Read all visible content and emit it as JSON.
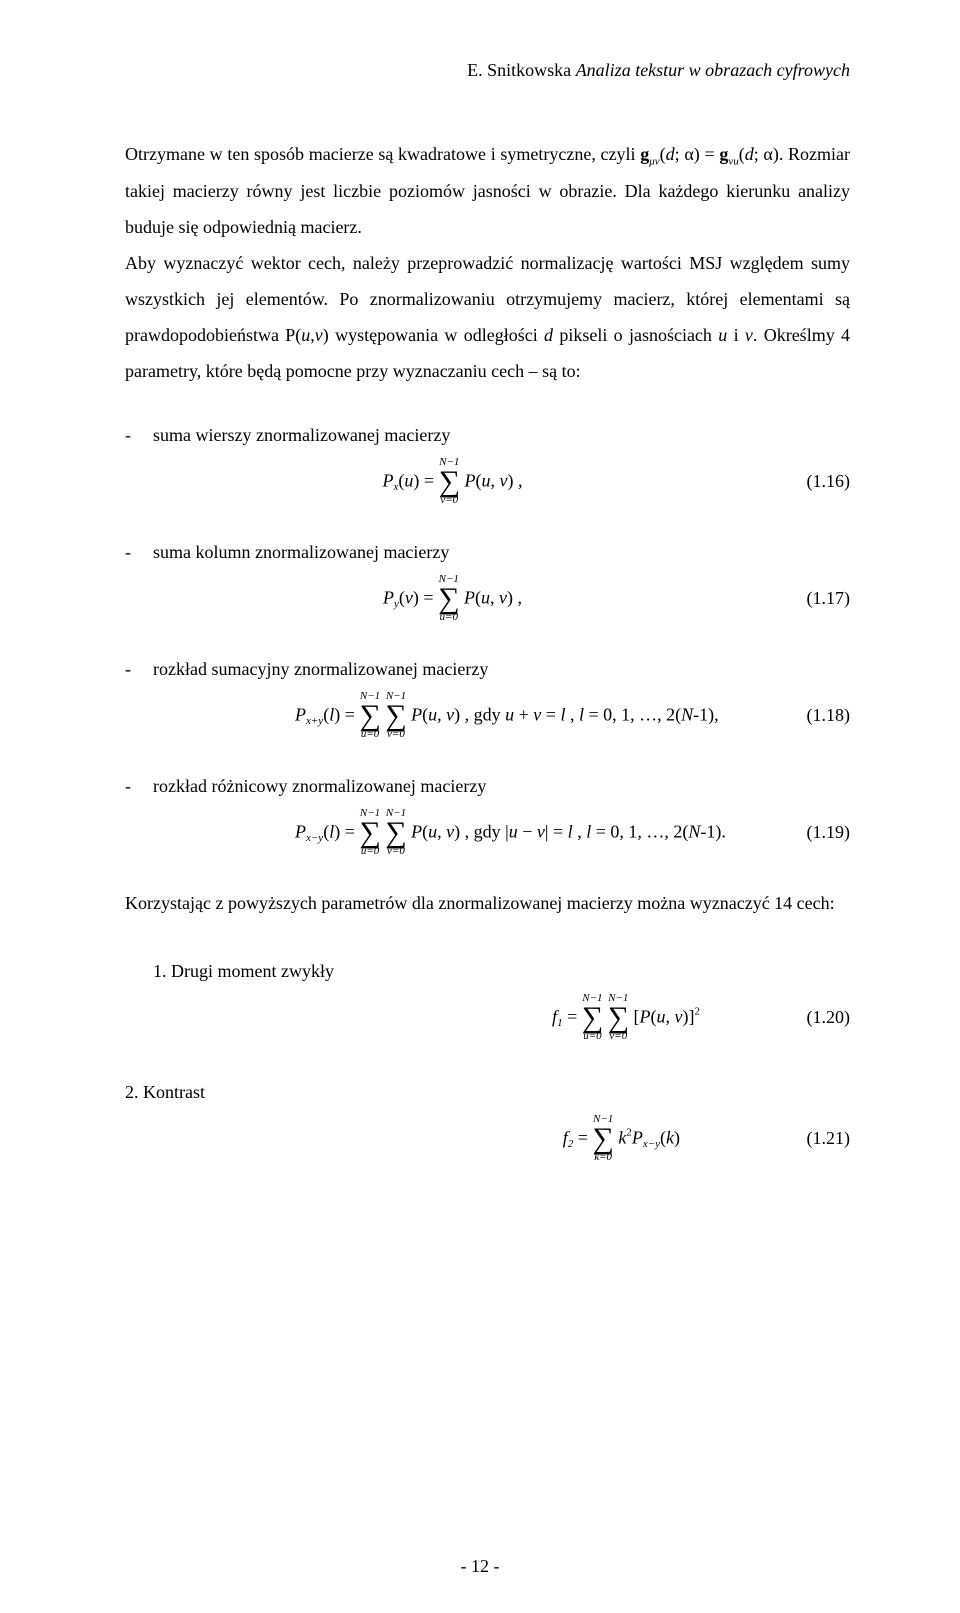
{
  "header": {
    "author": "E. Snitkowska ",
    "title": "Analiza tekstur w obrazach cyfrowych"
  },
  "para1": "Otrzymane w ten sposób macierze są kwadratowe i symetryczne, czyli gμν(d; α) = gνu(d; α). Rozmiar takiej macierzy równy jest liczbie poziomów jasności w obrazie. Dla każdego kierunku analizy buduje się odpowiednią macierz.",
  "para2": "Aby wyznaczyć wektor cech, należy przeprowadzić normalizację wartości MSJ względem sumy wszystkich jej elementów. Po znormalizowaniu otrzymujemy macierz, której elementami są prawdopodobieństwa P(u,v) występowania w odległości d pikseli o jasnościach u i v. Określmy 4 parametry, które będą pomocne przy wyznaczaniu cech – są to:",
  "items": {
    "i1": "suma wierszy znormalizowanej macierzy",
    "i2": "suma kolumn znormalizowanej macierzy",
    "i3": "rozkład sumacyjny znormalizowanej macierzy",
    "i4": "rozkład różnicowy znormalizowanej macierzy"
  },
  "eq": {
    "n1_16": "(1.16)",
    "n1_17": "(1.17)",
    "n1_18": "(1.18)",
    "n1_19": "(1.19)",
    "n1_20": "(1.20)",
    "n1_21": "(1.21)",
    "sum_upper": "N−1",
    "e1_16_left": "P",
    "e1_16_sub": "x",
    "e1_16_mid": "(u) = ",
    "e1_16_lower": "v=0",
    "e1_16_right": " P(u, v) ,",
    "e1_17_sub": "y",
    "e1_17_mid": "(v) = ",
    "e1_17_lower": "u=0",
    "e1_17_right": " P(u, v) ,",
    "e1_18_sub": "x+y",
    "e1_18_mid": "(l) = ",
    "e1_18_lower1": "u=0",
    "e1_18_lower2": "v=0",
    "e1_18_right": " P(u, v) , gdy u + v = l , l = 0, 1, …, 2(N-1),",
    "e1_19_sub": "x−y",
    "e1_19_right": " P(u, v) , gdy |u − v| = l , l = 0, 1, …, 2(N-1).",
    "e1_20_left": "f",
    "e1_20_sub": "1",
    "e1_20_mid": " = ",
    "e1_20_right": " [P(u, v)]",
    "e1_20_sup": "2",
    "e1_21_sub": "2",
    "e1_21_mid": " = ",
    "e1_21_lower": "k=0",
    "e1_21_right_a": " k",
    "e1_21_right_b": "P",
    "e1_21_right_sub": "x−y",
    "e1_21_right_c": "(k)"
  },
  "para3": "Korzystając z powyższych parametrów dla znormalizowanej macierzy można wyznaczyć 14 cech:",
  "numItems": {
    "n1": "1.  Drugi moment zwykły",
    "n2": "2.  Kontrast"
  },
  "pageNumber": "- 12 -"
}
